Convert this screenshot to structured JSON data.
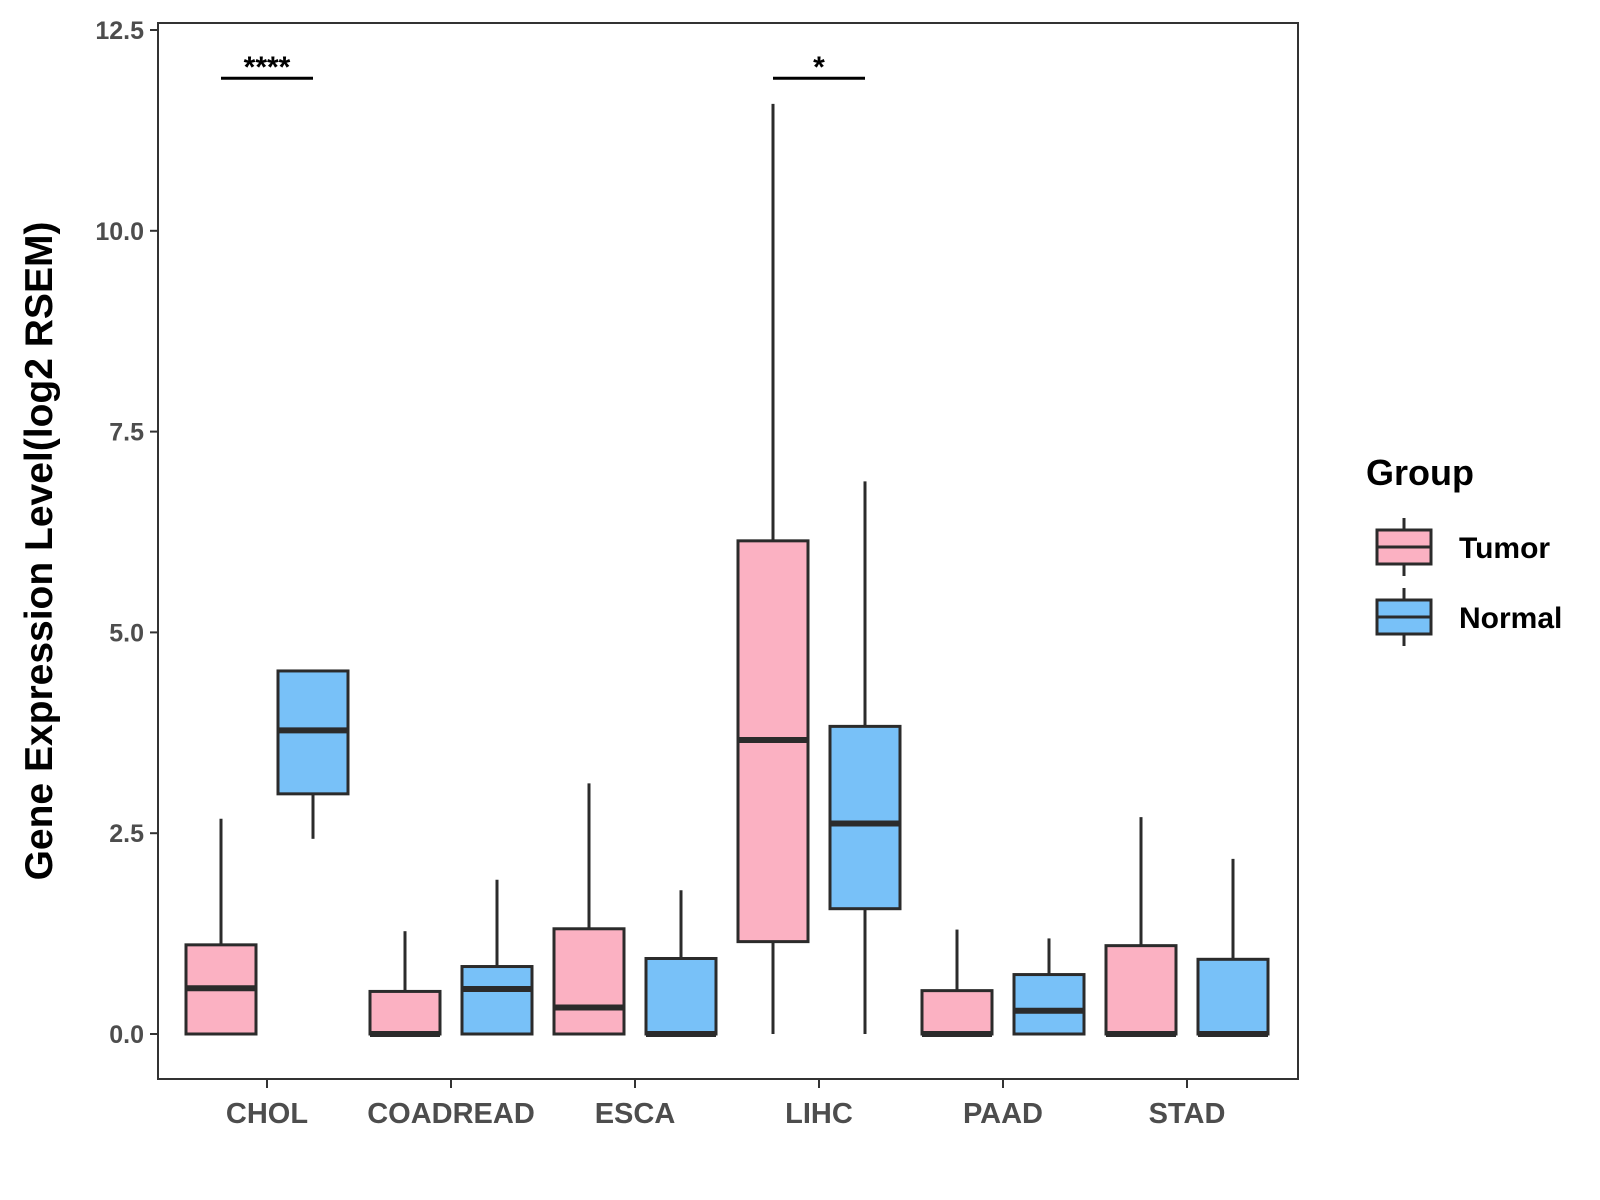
{
  "chart_data": {
    "type": "box",
    "title": "",
    "xlabel": "",
    "ylabel": "Gene Expression Level(log2 RSEM)",
    "ylim": [
      -0.3,
      12.5
    ],
    "yticks": [
      "0.0",
      "2.5",
      "5.0",
      "7.5",
      "10.0",
      "12.5"
    ],
    "ytick_values": [
      0,
      2.5,
      5,
      7.5,
      10,
      12.5
    ],
    "categories": [
      "CHOL",
      "COADREAD",
      "ESCA",
      "LIHC",
      "PAAD",
      "STAD"
    ],
    "legend": {
      "title": "Group",
      "position": "right",
      "entries": [
        "Tumor",
        "Normal"
      ]
    },
    "series": [
      {
        "name": "Tumor",
        "color": "#fbb1c2",
        "boxes": [
          {
            "whisker_low": 0.0,
            "q1": 0.0,
            "median": 0.57,
            "q3": 1.11,
            "whisker_high": 2.68
          },
          {
            "whisker_low": 0.0,
            "q1": 0.0,
            "median": 0.0,
            "q3": 0.53,
            "whisker_high": 1.28
          },
          {
            "whisker_low": 0.0,
            "q1": 0.0,
            "median": 0.33,
            "q3": 1.31,
            "whisker_high": 3.12
          },
          {
            "whisker_low": 0.0,
            "q1": 1.15,
            "median": 3.66,
            "q3": 6.14,
            "whisker_high": 11.58
          },
          {
            "whisker_low": 0.0,
            "q1": 0.0,
            "median": 0.0,
            "q3": 0.54,
            "whisker_high": 1.3
          },
          {
            "whisker_low": 0.0,
            "q1": 0.0,
            "median": 0.0,
            "q3": 1.1,
            "whisker_high": 2.7
          }
        ]
      },
      {
        "name": "Normal",
        "color": "#78c1f8",
        "boxes": [
          {
            "whisker_low": 2.43,
            "q1": 2.99,
            "median": 3.78,
            "q3": 4.52,
            "whisker_high": 4.52
          },
          {
            "whisker_low": 0.0,
            "q1": 0.0,
            "median": 0.56,
            "q3": 0.84,
            "whisker_high": 1.92
          },
          {
            "whisker_low": 0.0,
            "q1": 0.0,
            "median": 0.0,
            "q3": 0.94,
            "whisker_high": 1.79
          },
          {
            "whisker_low": 0.0,
            "q1": 1.56,
            "median": 2.62,
            "q3": 3.83,
            "whisker_high": 6.88
          },
          {
            "whisker_low": 0.0,
            "q1": 0.0,
            "median": 0.29,
            "q3": 0.74,
            "whisker_high": 1.19
          },
          {
            "whisker_low": 0.0,
            "q1": 0.0,
            "median": 0.0,
            "q3": 0.93,
            "whisker_high": 2.18
          }
        ]
      }
    ],
    "annotations": [
      {
        "category": "CHOL",
        "label": "****",
        "y": 11.9
      },
      {
        "category": "LIHC",
        "label": "*",
        "y": 11.9
      }
    ]
  }
}
